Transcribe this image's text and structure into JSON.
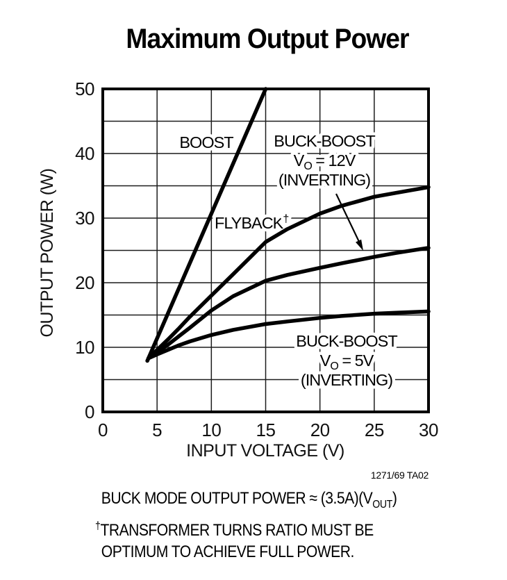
{
  "title": "Maximum Output Power",
  "chart_data": {
    "type": "line",
    "title": "Maximum Output Power",
    "xlabel": "INPUT VOLTAGE (V)",
    "ylabel": "OUTPUT POWER (W)",
    "xlim": [
      0,
      30
    ],
    "ylim": [
      0,
      50
    ],
    "x_ticks": [
      0,
      5,
      10,
      15,
      20,
      25,
      30
    ],
    "y_ticks": [
      0,
      10,
      20,
      30,
      40,
      50
    ],
    "grid": true,
    "grid_step_x": 5,
    "grid_step_y": 5,
    "legend_position": "inline-labels",
    "series": [
      {
        "name": "BOOST",
        "x": [
          4.1,
          15
        ],
        "y": [
          7.9,
          50
        ]
      },
      {
        "name": "FLYBACK",
        "x": [
          4.2,
          5,
          6,
          7,
          8,
          10,
          12,
          15,
          17,
          20,
          22,
          25,
          27,
          30
        ],
        "y": [
          8.3,
          9.6,
          11.2,
          12.9,
          14.7,
          18.0,
          21.3,
          26.3,
          28.3,
          30.7,
          31.9,
          33.3,
          33.9,
          34.8
        ]
      },
      {
        "name": "BUCK-BOOST VO = 12V (INVERTING)",
        "x": [
          4.2,
          5,
          6,
          7,
          8,
          10,
          12,
          15,
          17,
          20,
          22,
          25,
          27,
          30
        ],
        "y": [
          8.3,
          9.2,
          10.4,
          11.7,
          13.0,
          15.7,
          17.9,
          20.3,
          21.2,
          22.3,
          23.0,
          24.0,
          24.6,
          25.4
        ]
      },
      {
        "name": "BUCK-BOOST VO = 5V (INVERTING)",
        "x": [
          4.2,
          5,
          6,
          7,
          8,
          10,
          12,
          15,
          17,
          20,
          22,
          25,
          27,
          30
        ],
        "y": [
          8.3,
          8.9,
          9.6,
          10.3,
          10.9,
          11.9,
          12.7,
          13.6,
          14.0,
          14.55,
          14.85,
          15.2,
          15.35,
          15.55
        ]
      }
    ]
  },
  "labels": {
    "boost": "BOOST",
    "flyback": {
      "text": "FLYBACK",
      "sup": "†"
    },
    "bb12": {
      "line1": "BUCK-BOOST",
      "v": "V",
      "sub": "O",
      "eq": " = 12V",
      "line3": "(INVERTING)"
    },
    "bb5": {
      "line1": "BUCK-BOOST",
      "v": "V",
      "sub": "O",
      "eq": " = 5V",
      "line3": "(INVERTING)"
    }
  },
  "figure_ref": "1271/69 TA02",
  "notes": {
    "line1_pre": "BUCK MODE OUTPUT POWER ≈ (3.5A)(V",
    "line1_sub": "OUT",
    "line1_post": ")",
    "line2_sup": "†",
    "line2": "TRANSFORMER TURNS RATIO MUST BE",
    "line3": "OPTIMUM TO ACHIEVE FULL POWER."
  }
}
